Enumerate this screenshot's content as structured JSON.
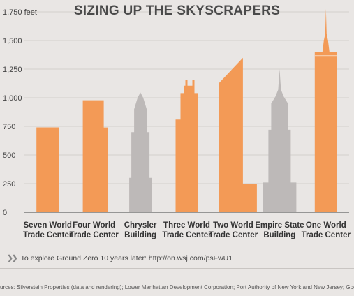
{
  "chart_data": {
    "type": "bar",
    "title": "SIZING UP THE SKYSCRAPERS",
    "ylabel": "feet",
    "ylim": [
      0,
      1750
    ],
    "yticks": [
      0,
      250,
      500,
      750,
      1000,
      1250,
      1500,
      1750
    ],
    "ytick_labels": [
      "0",
      "250",
      "500",
      "750",
      "1,000",
      "1,250",
      "1,500",
      "1,750 feet"
    ],
    "grid": true,
    "categories": [
      "Seven World Trade Center",
      "Four World Trade Center",
      "Chrysler Building",
      "Three World Trade Center",
      "Two World Trade Center",
      "Empire State Building",
      "One World Trade Center"
    ],
    "category_label_lines": [
      [
        "Seven World",
        "Trade Center"
      ],
      [
        "Four World",
        "Trade Center"
      ],
      [
        "Chrysler",
        "Building"
      ],
      [
        "Three World",
        "Trade Center"
      ],
      [
        "Two World",
        "Trade Center"
      ],
      [
        "Empire State",
        "Building"
      ],
      [
        "One World",
        "Trade Center"
      ]
    ],
    "values": [
      741,
      978,
      1046,
      1155,
      1349,
      1250,
      1776
    ],
    "highlight": [
      true,
      true,
      false,
      true,
      true,
      false,
      true
    ],
    "colors": {
      "wtc": "#f39a56",
      "existing": "#bdb9b8",
      "grid": "#d4d0cd",
      "axis": "#666666"
    }
  },
  "footer": {
    "link_text": "To explore Ground Zero 10 years later: http://on.wsj.com/psFwU1",
    "arrow_icon": "double-chevron-right-icon",
    "source_text": "urces: Silverstein Properties (data and rendering); Lower Manhattan Development Corporation; Port Authority of New York and New Jersey; Google E"
  }
}
